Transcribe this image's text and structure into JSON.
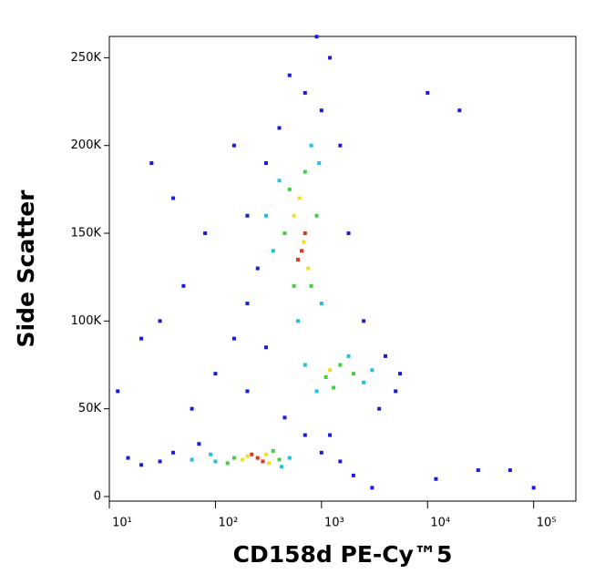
{
  "chart_data": {
    "type": "scatter",
    "x_label": "CD158d PE-Cy™5",
    "y_label": "Side Scatter",
    "xscale": "log",
    "xlim": [
      10,
      250000
    ],
    "ylim": [
      -2600,
      262144
    ],
    "xticks": [
      {
        "value": 10,
        "label": "10¹"
      },
      {
        "value": 100,
        "label": "10²"
      },
      {
        "value": 1000,
        "label": "10³"
      },
      {
        "value": 10000,
        "label": "10⁴"
      },
      {
        "value": 100000,
        "label": "10⁵"
      }
    ],
    "yticks": [
      0,
      {
        "value": 50000,
        "label": "50K"
      },
      {
        "value": 100000,
        "label": "100K"
      },
      {
        "value": 150000,
        "label": "150K"
      },
      {
        "value": 200000,
        "label": "200K"
      },
      {
        "value": 250000,
        "label": "250K"
      }
    ],
    "series": [
      {
        "color": "#1a1adc",
        "x": [
          30,
          40,
          20,
          15,
          70,
          700,
          1000,
          1500,
          60,
          100,
          150,
          200,
          250,
          200,
          300,
          400,
          700,
          1000,
          1200,
          500,
          900,
          1500,
          1800,
          2500,
          4000,
          5000,
          3500,
          150,
          80,
          50,
          30,
          20,
          40,
          25,
          200,
          300,
          450,
          12,
          12000,
          10000,
          20000,
          30000,
          3000,
          2000,
          1200,
          60000,
          5500,
          100000
        ],
        "values": [
          20000,
          25000,
          18000,
          22000,
          30000,
          35000,
          25000,
          20000,
          50000,
          70000,
          90000,
          110000,
          130000,
          160000,
          190000,
          210000,
          230000,
          220000,
          250000,
          240000,
          262000,
          200000,
          150000,
          100000,
          80000,
          60000,
          50000,
          200000,
          150000,
          120000,
          100000,
          90000,
          170000,
          190000,
          60000,
          85000,
          45000,
          60000,
          10000,
          230000,
          220000,
          15000,
          5000,
          12000,
          35000,
          15000,
          70000,
          5000
        ]
      },
      {
        "color": "#20c0e0",
        "x": [
          100,
          90,
          500,
          420,
          60,
          400,
          950,
          350,
          1000,
          600,
          800,
          300,
          1800,
          2500,
          900,
          3000,
          700
        ],
        "values": [
          20000,
          24000,
          22000,
          17000,
          21000,
          180000,
          190000,
          140000,
          110000,
          100000,
          200000,
          160000,
          80000,
          65000,
          60000,
          72000,
          75000
        ]
      },
      {
        "color": "#40d040",
        "x": [
          150,
          400,
          350,
          130,
          500,
          800,
          450,
          900,
          700,
          550,
          1100,
          1500,
          1300,
          2000
        ],
        "values": [
          22000,
          21000,
          26000,
          19000,
          175000,
          120000,
          150000,
          160000,
          185000,
          120000,
          68000,
          75000,
          62000,
          70000
        ]
      },
      {
        "color": "#f0e020",
        "x": [
          200,
          300,
          320,
          180,
          550,
          750,
          620,
          680,
          1200
        ],
        "values": [
          23000,
          24000,
          19000,
          21000,
          160000,
          130000,
          170000,
          145000,
          72000
        ]
      },
      {
        "color": "#e8321e",
        "x": [
          250,
          280,
          220,
          650,
          700,
          600
        ],
        "values": [
          22000,
          20000,
          24000,
          140000,
          150000,
          135000
        ]
      }
    ]
  }
}
